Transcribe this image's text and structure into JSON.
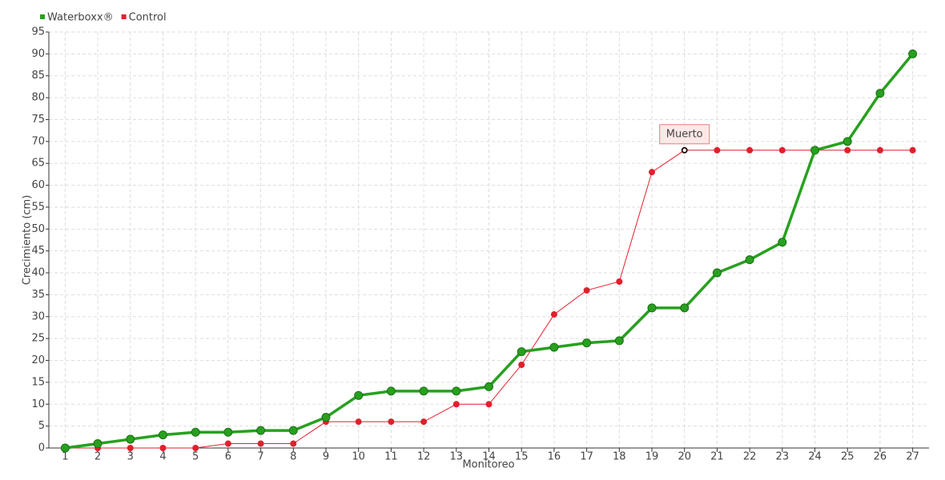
{
  "chart_data": {
    "type": "line",
    "x_label": "Monitoreo",
    "y_label": "Crecimiento (cm)",
    "categories": [
      "1",
      "2",
      "3",
      "4",
      "5",
      "6",
      "7",
      "8",
      "9",
      "10",
      "11",
      "12",
      "13",
      "14",
      "15",
      "16",
      "17",
      "18",
      "19",
      "20",
      "21",
      "22",
      "23",
      "24",
      "25",
      "26",
      "27"
    ],
    "series": [
      {
        "name": "Waterboxx®",
        "color": "#27a01f",
        "values": [
          0,
          1,
          2,
          3,
          3.6,
          3.6,
          4,
          4,
          7,
          12,
          13,
          13,
          13,
          14,
          22,
          23,
          24,
          24.5,
          32,
          32,
          40,
          43,
          47,
          68,
          70,
          81,
          90
        ]
      },
      {
        "name": "Control",
        "color": "#e21f2d",
        "values": [
          0,
          0,
          0,
          0,
          0,
          1,
          1,
          1,
          6,
          6,
          6,
          6,
          10,
          10,
          19,
          30.5,
          36,
          38,
          63,
          68,
          68,
          68,
          68,
          68,
          68,
          68,
          68
        ]
      }
    ],
    "annotations": [
      {
        "label": "Muerto",
        "x": "20",
        "y": 68
      }
    ],
    "ylim": [
      0,
      95
    ],
    "yticks": [
      0,
      5,
      10,
      15,
      20,
      25,
      30,
      35,
      40,
      45,
      50,
      55,
      60,
      65,
      70,
      75,
      80,
      85,
      90,
      95
    ],
    "grid": true,
    "legend": "top-left"
  }
}
